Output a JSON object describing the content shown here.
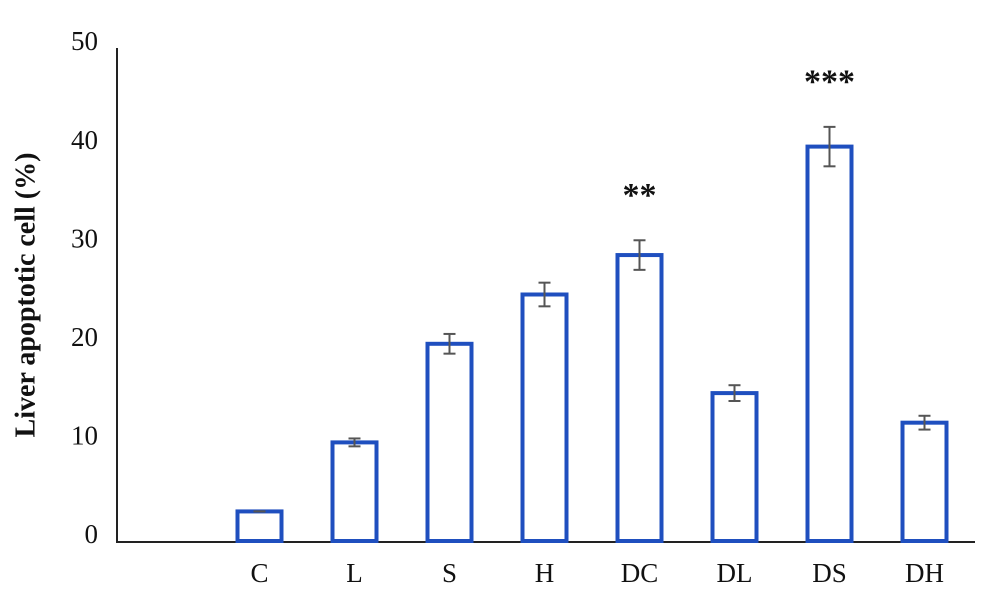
{
  "chart_data": {
    "type": "bar",
    "y_label": "Liver apoptotic cell (%)",
    "categories": [
      null,
      "C",
      "L",
      "S",
      "H",
      "DC",
      "DL",
      "DS",
      "DH"
    ],
    "values": [
      null,
      3,
      10,
      20,
      25,
      29,
      15,
      40,
      12
    ],
    "errors": [
      null,
      0,
      0.4,
      1,
      1.2,
      1.5,
      0.8,
      2,
      0.7
    ],
    "color": "#1f4fbf",
    "error_color": "#555555",
    "ylim": [
      0,
      50
    ],
    "yticks": [
      0,
      10,
      20,
      30,
      40,
      50
    ],
    "grid": false,
    "annotations": [
      {
        "text": "**",
        "category": "DC"
      },
      {
        "text": "***",
        "category": "DS"
      }
    ]
  }
}
